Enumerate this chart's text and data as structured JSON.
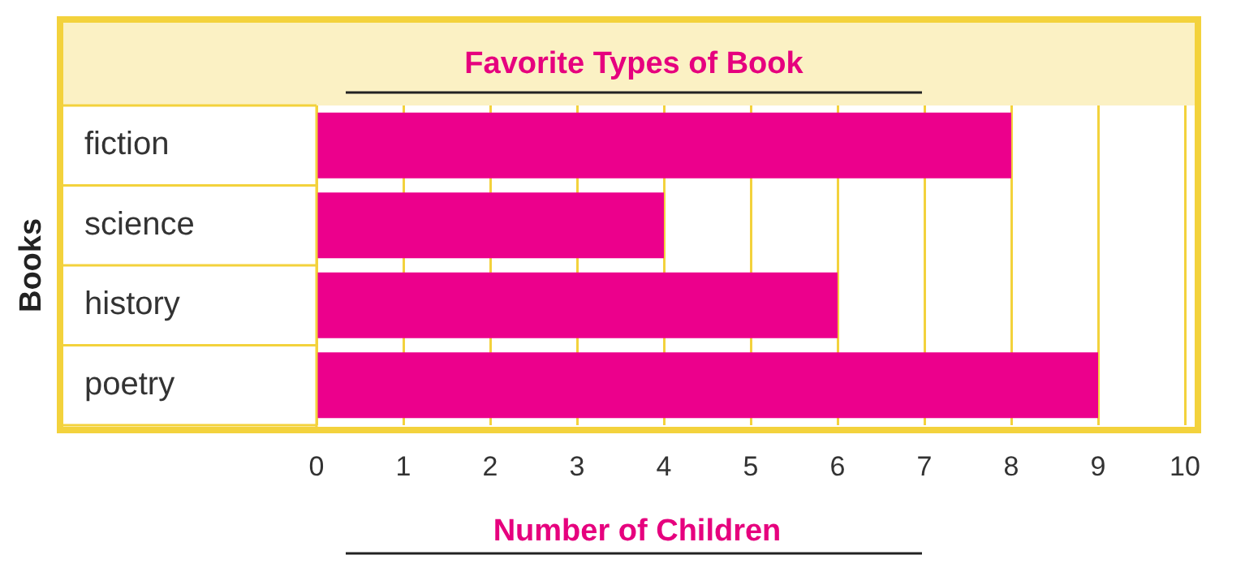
{
  "chart_data": {
    "type": "bar",
    "orientation": "horizontal",
    "title": "Favorite Types of Book",
    "xlabel": "Number of Children",
    "ylabel": "Books",
    "categories": [
      "fiction",
      "science",
      "history",
      "poetry"
    ],
    "values": [
      8,
      4,
      6,
      9
    ],
    "color": "#ec008c",
    "xlim": [
      0,
      10
    ],
    "xticks": [
      0,
      1,
      2,
      3,
      4,
      5,
      6,
      7,
      8,
      9,
      10
    ],
    "grid": "x"
  }
}
